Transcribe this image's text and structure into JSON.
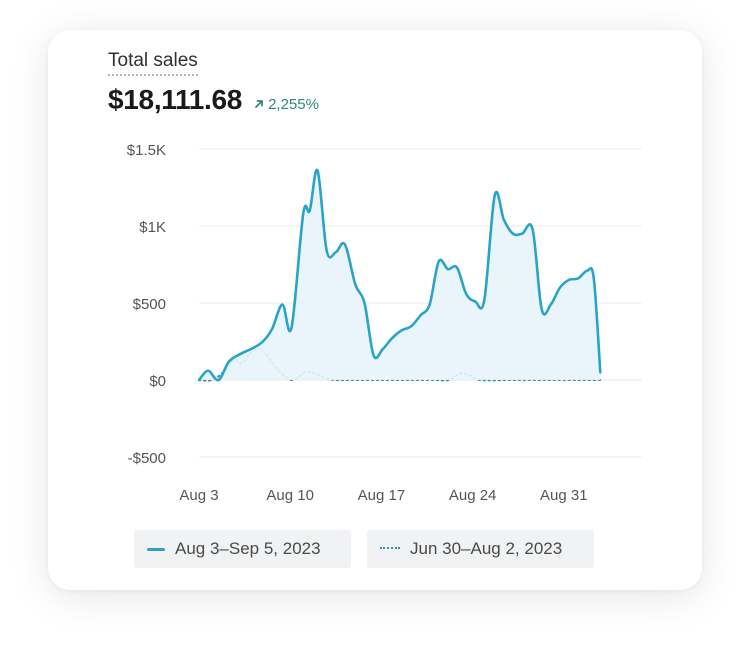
{
  "header": {
    "title": "Total sales",
    "total": "$18,111.68",
    "change": "2,255%",
    "change_color": "#2f8a7a"
  },
  "chart_data": {
    "type": "line",
    "title": "Total sales",
    "ylim": [
      -500,
      1500
    ],
    "yticks": [
      {
        "v": 1500,
        "label": "$1.5K"
      },
      {
        "v": 1000,
        "label": "$1K"
      },
      {
        "v": 500,
        "label": "$500"
      },
      {
        "v": 0,
        "label": "$0"
      },
      {
        "v": -500,
        "label": "-$500"
      }
    ],
    "xlim": [
      0,
      34
    ],
    "xticks": [
      {
        "x": 0,
        "label": "Aug 3"
      },
      {
        "x": 7,
        "label": "Aug 10"
      },
      {
        "x": 14,
        "label": "Aug 17"
      },
      {
        "x": 21,
        "label": "Aug 24"
      },
      {
        "x": 28,
        "label": "Aug 31"
      }
    ],
    "grid": true,
    "legend_position": "bottom",
    "series": [
      {
        "name": "Aug 3–Sep 5, 2023",
        "style": "solid",
        "color": "#2aa3c8",
        "fill": "#e7f4fa",
        "points": [
          [
            0,
            0
          ],
          [
            0.7,
            60
          ],
          [
            1.5,
            0
          ],
          [
            2.3,
            120
          ],
          [
            3.2,
            170
          ],
          [
            4.2,
            210
          ],
          [
            4.9,
            250
          ],
          [
            5.6,
            330
          ],
          [
            6.4,
            490
          ],
          [
            7.1,
            340
          ],
          [
            8.0,
            1080
          ],
          [
            8.5,
            1100
          ],
          [
            9.1,
            1360
          ],
          [
            9.8,
            840
          ],
          [
            10.5,
            830
          ],
          [
            11.2,
            880
          ],
          [
            12.0,
            620
          ],
          [
            12.7,
            500
          ],
          [
            13.4,
            160
          ],
          [
            14.1,
            200
          ],
          [
            14.8,
            270
          ],
          [
            15.5,
            320
          ],
          [
            16.3,
            350
          ],
          [
            17.0,
            420
          ],
          [
            17.7,
            490
          ],
          [
            18.4,
            770
          ],
          [
            19.1,
            720
          ],
          [
            19.8,
            730
          ],
          [
            20.5,
            560
          ],
          [
            21.2,
            510
          ],
          [
            21.9,
            520
          ],
          [
            22.7,
            1200
          ],
          [
            23.4,
            1040
          ],
          [
            24.1,
            950
          ],
          [
            24.8,
            950
          ],
          [
            25.6,
            980
          ],
          [
            26.3,
            460
          ],
          [
            27.0,
            490
          ],
          [
            27.7,
            600
          ],
          [
            28.4,
            650
          ],
          [
            29.1,
            660
          ],
          [
            29.8,
            710
          ],
          [
            30.3,
            660
          ],
          [
            30.8,
            50
          ]
        ]
      },
      {
        "name": "Jun 30–Aug 2, 2023",
        "style": "dotted",
        "color": "#3a90b0",
        "points": [
          [
            0,
            0
          ],
          [
            1,
            0
          ],
          [
            2,
            60
          ],
          [
            2.7,
            130
          ],
          [
            3.3,
            110
          ],
          [
            4.0,
            180
          ],
          [
            4.7,
            200
          ],
          [
            5.3,
            150
          ],
          [
            5.9,
            80
          ],
          [
            6.5,
            30
          ],
          [
            7.2,
            0
          ],
          [
            8.2,
            50
          ],
          [
            9.0,
            40
          ],
          [
            9.7,
            10
          ],
          [
            10.5,
            0
          ],
          [
            12,
            0
          ],
          [
            14,
            0
          ],
          [
            16,
            0
          ],
          [
            18,
            0
          ],
          [
            19.2,
            0
          ],
          [
            20.0,
            40
          ],
          [
            20.8,
            30
          ],
          [
            21.6,
            0
          ],
          [
            24,
            0
          ],
          [
            26,
            0
          ],
          [
            28,
            0
          ],
          [
            30.8,
            0
          ]
        ]
      }
    ]
  }
}
